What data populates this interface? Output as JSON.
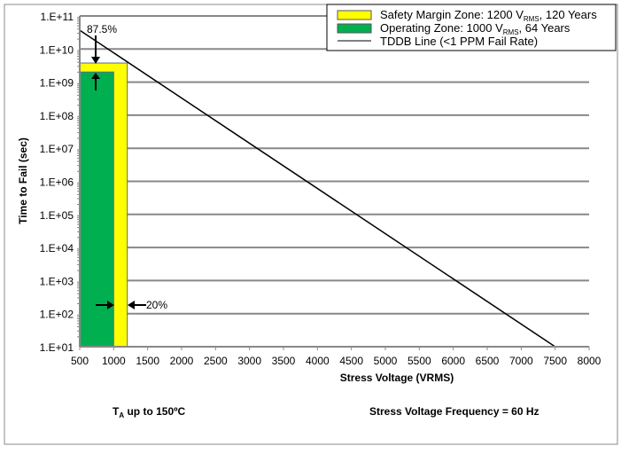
{
  "chart_data": {
    "type": "line",
    "xlabel": "Stress Voltage (VRMS)",
    "ylabel": "Time to Fail (sec)",
    "xlim": [
      500,
      8000
    ],
    "ylim": [
      10,
      100000000000
    ],
    "yscale": "log",
    "grid": "horizontal",
    "x_ticks": [
      "500",
      "1000",
      "1500",
      "2000",
      "2500",
      "3000",
      "3500",
      "4000",
      "4500",
      "5000",
      "5500",
      "6000",
      "6500",
      "7000",
      "7500",
      "8000"
    ],
    "y_ticks": [
      "1.E+01",
      "1.E+02",
      "1.E+03",
      "1.E+04",
      "1.E+05",
      "1.E+06",
      "1.E+07",
      "1.E+08",
      "1.E+09",
      "1.E+10",
      "1.E+11"
    ],
    "legend_position": "top-right",
    "series": [
      {
        "name": "TDDB Line (<1 PPM Fail Rate)",
        "type": "line",
        "color": "#000000",
        "x": [
          500,
          7500
        ],
        "y": [
          37000000000,
          10
        ]
      }
    ],
    "zones": [
      {
        "name_main": "Safety Margin Zone:  1200 V",
        "name_sub": "RMS",
        "name_tail": ", 120 Years",
        "color": "#ffff00",
        "x_max": 1200,
        "y_max": 3780000000
      },
      {
        "name_main": "Operating Zone:  1000 V",
        "name_sub": "RMS",
        "name_tail": ", 64 Years",
        "color": "#00b050",
        "x_max": 1000,
        "y_max": 2020000000
      }
    ],
    "annotations": {
      "vertical_margin": "87.5%",
      "horizontal_margin": "20%"
    },
    "footnote_left_main": "T",
    "footnote_left_sub": "A",
    "footnote_left_tail": "  up to 150ºC",
    "footnote_right": "Stress Voltage Frequency = 60 Hz"
  }
}
